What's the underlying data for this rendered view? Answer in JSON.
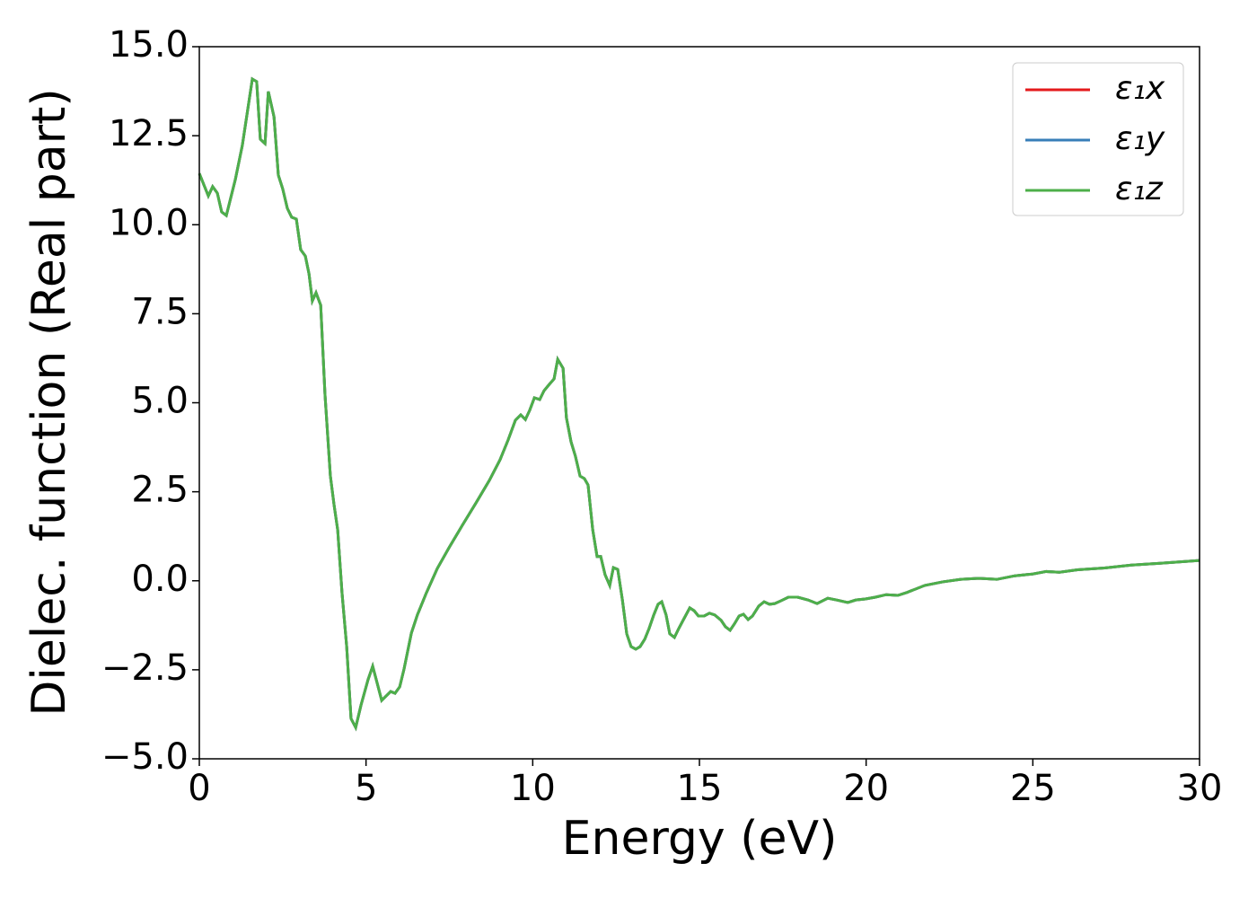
{
  "chart_data": {
    "type": "line",
    "xlabel": "Energy (eV)",
    "ylabel": "Dielec. function (Real part)",
    "x": [
      0,
      0.27,
      0.4,
      0.54,
      0.67,
      0.81,
      1.08,
      1.29,
      1.59,
      1.72,
      1.83,
      1.97,
      2.07,
      2.24,
      2.37,
      2.5,
      2.64,
      2.77,
      2.91,
      3.04,
      3.18,
      3.29,
      3.39,
      3.5,
      3.64,
      3.77,
      3.93,
      4.04,
      4.15,
      4.28,
      4.42,
      4.55,
      4.69,
      4.85,
      5.06,
      5.2,
      5.33,
      5.47,
      5.6,
      5.74,
      5.87,
      6.01,
      6.14,
      6.36,
      6.54,
      6.81,
      7.14,
      7.49,
      7.89,
      8.3,
      8.7,
      9.02,
      9.26,
      9.48,
      9.64,
      9.78,
      9.91,
      10.05,
      10.21,
      10.34,
      10.5,
      10.64,
      10.75,
      10.91,
      11.01,
      11.15,
      11.28,
      11.42,
      11.55,
      11.66,
      11.8,
      11.93,
      12.04,
      12.17,
      12.31,
      12.42,
      12.55,
      12.69,
      12.82,
      12.95,
      13.09,
      13.22,
      13.36,
      13.49,
      13.63,
      13.76,
      13.87,
      14.0,
      14.11,
      14.25,
      14.38,
      14.55,
      14.71,
      14.84,
      14.97,
      15.14,
      15.3,
      15.46,
      15.65,
      15.78,
      15.92,
      16.05,
      16.19,
      16.32,
      16.46,
      16.59,
      16.78,
      16.94,
      17.1,
      17.26,
      17.45,
      17.67,
      17.94,
      18.26,
      18.53,
      18.85,
      19.12,
      19.45,
      19.69,
      19.98,
      20.28,
      20.6,
      20.95,
      21.22,
      21.76,
      22.3,
      22.84,
      23.38,
      23.92,
      24.46,
      24.99,
      25.4,
      25.8,
      26.34,
      27.15,
      27.96,
      28.77,
      30.0
    ],
    "series": [
      {
        "name": "ε₁x",
        "color": "#e41a1c",
        "values": [
          11.44,
          10.81,
          11.07,
          10.89,
          10.36,
          10.26,
          11.27,
          12.23,
          14.09,
          14.02,
          12.4,
          12.28,
          13.74,
          13.03,
          11.39,
          11.01,
          10.46,
          10.21,
          10.16,
          9.3,
          9.12,
          8.62,
          7.86,
          8.09,
          7.74,
          5.22,
          2.95,
          2.14,
          1.43,
          -0.34,
          -1.85,
          -3.87,
          -4.12,
          -3.49,
          -2.78,
          -2.4,
          -2.86,
          -3.36,
          -3.24,
          -3.11,
          -3.16,
          -2.98,
          -2.48,
          -1.47,
          -0.96,
          -0.34,
          0.35,
          0.93,
          1.56,
          2.19,
          2.82,
          3.4,
          3.95,
          4.51,
          4.66,
          4.53,
          4.79,
          5.14,
          5.09,
          5.34,
          5.52,
          5.67,
          6.22,
          5.97,
          4.58,
          3.9,
          3.5,
          2.94,
          2.87,
          2.69,
          1.43,
          0.68,
          0.68,
          0.17,
          -0.13,
          0.37,
          0.32,
          -0.54,
          -1.49,
          -1.85,
          -1.92,
          -1.85,
          -1.64,
          -1.34,
          -0.96,
          -0.66,
          -0.59,
          -0.96,
          -1.49,
          -1.59,
          -1.34,
          -1.04,
          -0.76,
          -0.84,
          -0.99,
          -0.99,
          -0.91,
          -0.96,
          -1.11,
          -1.29,
          -1.39,
          -1.21,
          -0.99,
          -0.94,
          -1.09,
          -0.99,
          -0.71,
          -0.59,
          -0.66,
          -0.64,
          -0.56,
          -0.46,
          -0.46,
          -0.54,
          -0.64,
          -0.49,
          -0.54,
          -0.61,
          -0.54,
          -0.51,
          -0.46,
          -0.39,
          -0.41,
          -0.33,
          -0.13,
          -0.03,
          0.04,
          0.07,
          0.04,
          0.14,
          0.19,
          0.26,
          0.24,
          0.31,
          0.36,
          0.44,
          0.49,
          0.57
        ]
      },
      {
        "name": "ε₁y",
        "color": "#377eb8",
        "values": [
          11.44,
          10.81,
          11.07,
          10.89,
          10.36,
          10.26,
          11.27,
          12.23,
          14.09,
          14.02,
          12.4,
          12.28,
          13.74,
          13.03,
          11.39,
          11.01,
          10.46,
          10.21,
          10.16,
          9.3,
          9.12,
          8.62,
          7.86,
          8.09,
          7.74,
          5.22,
          2.95,
          2.14,
          1.43,
          -0.34,
          -1.85,
          -3.87,
          -4.12,
          -3.49,
          -2.78,
          -2.4,
          -2.86,
          -3.36,
          -3.24,
          -3.11,
          -3.16,
          -2.98,
          -2.48,
          -1.47,
          -0.96,
          -0.34,
          0.35,
          0.93,
          1.56,
          2.19,
          2.82,
          3.4,
          3.95,
          4.51,
          4.66,
          4.53,
          4.79,
          5.14,
          5.09,
          5.34,
          5.52,
          5.67,
          6.22,
          5.97,
          4.58,
          3.9,
          3.5,
          2.94,
          2.87,
          2.69,
          1.43,
          0.68,
          0.68,
          0.17,
          -0.13,
          0.37,
          0.32,
          -0.54,
          -1.49,
          -1.85,
          -1.92,
          -1.85,
          -1.64,
          -1.34,
          -0.96,
          -0.66,
          -0.59,
          -0.96,
          -1.49,
          -1.59,
          -1.34,
          -1.04,
          -0.76,
          -0.84,
          -0.99,
          -0.99,
          -0.91,
          -0.96,
          -1.11,
          -1.29,
          -1.39,
          -1.21,
          -0.99,
          -0.94,
          -1.09,
          -0.99,
          -0.71,
          -0.59,
          -0.66,
          -0.64,
          -0.56,
          -0.46,
          -0.46,
          -0.54,
          -0.64,
          -0.49,
          -0.54,
          -0.61,
          -0.54,
          -0.51,
          -0.46,
          -0.39,
          -0.41,
          -0.33,
          -0.13,
          -0.03,
          0.04,
          0.07,
          0.04,
          0.14,
          0.19,
          0.26,
          0.24,
          0.31,
          0.36,
          0.44,
          0.49,
          0.57
        ]
      },
      {
        "name": "ε₁z",
        "color": "#4daf4a",
        "values": [
          11.44,
          10.81,
          11.07,
          10.89,
          10.36,
          10.26,
          11.27,
          12.23,
          14.09,
          14.02,
          12.4,
          12.28,
          13.74,
          13.03,
          11.39,
          11.01,
          10.46,
          10.21,
          10.16,
          9.3,
          9.12,
          8.62,
          7.86,
          8.09,
          7.74,
          5.22,
          2.95,
          2.14,
          1.43,
          -0.34,
          -1.85,
          -3.87,
          -4.12,
          -3.49,
          -2.78,
          -2.4,
          -2.86,
          -3.36,
          -3.24,
          -3.11,
          -3.16,
          -2.98,
          -2.48,
          -1.47,
          -0.96,
          -0.34,
          0.35,
          0.93,
          1.56,
          2.19,
          2.82,
          3.4,
          3.95,
          4.51,
          4.66,
          4.53,
          4.79,
          5.14,
          5.09,
          5.34,
          5.52,
          5.67,
          6.22,
          5.97,
          4.58,
          3.9,
          3.5,
          2.94,
          2.87,
          2.69,
          1.43,
          0.68,
          0.68,
          0.17,
          -0.13,
          0.37,
          0.32,
          -0.54,
          -1.49,
          -1.85,
          -1.92,
          -1.85,
          -1.64,
          -1.34,
          -0.96,
          -0.66,
          -0.59,
          -0.96,
          -1.49,
          -1.59,
          -1.34,
          -1.04,
          -0.76,
          -0.84,
          -0.99,
          -0.99,
          -0.91,
          -0.96,
          -1.11,
          -1.29,
          -1.39,
          -1.21,
          -0.99,
          -0.94,
          -1.09,
          -0.99,
          -0.71,
          -0.59,
          -0.66,
          -0.64,
          -0.56,
          -0.46,
          -0.46,
          -0.54,
          -0.64,
          -0.49,
          -0.54,
          -0.61,
          -0.54,
          -0.51,
          -0.46,
          -0.39,
          -0.41,
          -0.33,
          -0.13,
          -0.03,
          0.04,
          0.07,
          0.04,
          0.14,
          0.19,
          0.26,
          0.24,
          0.31,
          0.36,
          0.44,
          0.49,
          0.57
        ]
      }
    ],
    "xlim": [
      0,
      30
    ],
    "xticks": [
      0,
      5,
      10,
      15,
      20,
      25,
      30
    ],
    "ylim": [
      -5,
      15
    ],
    "yticks": [
      {
        "value": -5,
        "label": "−5.0"
      },
      {
        "value": -2.5,
        "label": "−2.5"
      },
      {
        "value": 0,
        "label": "0.0"
      },
      {
        "value": 2.5,
        "label": "2.5"
      },
      {
        "value": 5,
        "label": "5.0"
      },
      {
        "value": 7.5,
        "label": "7.5"
      },
      {
        "value": 10,
        "label": "10.0"
      },
      {
        "value": 12.5,
        "label": "12.5"
      },
      {
        "value": 15,
        "label": "15.0"
      }
    ],
    "legend": "upper right",
    "grid": false
  }
}
